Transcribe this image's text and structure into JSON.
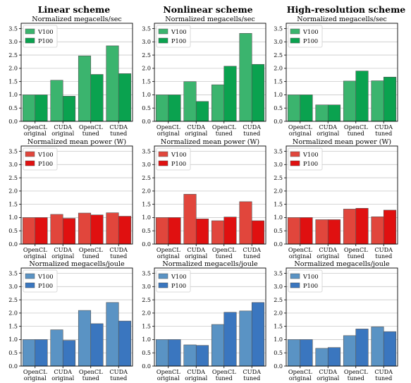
{
  "colors": {
    "speed_v100": "#3bb46e",
    "speed_p100": "#0aa24f",
    "power_v100": "#e1463c",
    "power_p100": "#e01010",
    "energy_v100": "#5a93c4",
    "energy_p100": "#3a76bf",
    "grid": "#c8c8c8",
    "edge": "#555555"
  },
  "columns": [
    "Linear scheme",
    "Nonlinear scheme",
    "High-resolution scheme"
  ],
  "legend_labels": [
    "V100",
    "P100"
  ],
  "category_labels": [
    [
      "OpenCL",
      "original"
    ],
    [
      "CUDA",
      "original"
    ],
    [
      "OpenCL",
      "tuned"
    ],
    [
      "CUDA",
      "tuned"
    ]
  ],
  "chart_data": [
    {
      "type": "bar",
      "row": 0,
      "col": 0,
      "title": "Normalized megacells/sec",
      "categories": [
        "OpenCL original",
        "CUDA original",
        "OpenCL tuned",
        "CUDA tuned"
      ],
      "ylim": [
        0,
        3.7
      ],
      "yticks": [
        0,
        0.5,
        1.0,
        1.5,
        2.0,
        2.5,
        3.0,
        3.5
      ],
      "grid": true,
      "legend": "top-left",
      "series": [
        {
          "name": "V100",
          "values": [
            1.0,
            1.55,
            2.47,
            2.85
          ]
        },
        {
          "name": "P100",
          "values": [
            1.0,
            0.95,
            1.77,
            1.8
          ]
        }
      ]
    },
    {
      "type": "bar",
      "row": 0,
      "col": 1,
      "title": "Normalized megacells/sec",
      "categories": [
        "OpenCL original",
        "CUDA original",
        "OpenCL tuned",
        "CUDA tuned"
      ],
      "ylim": [
        0,
        3.7
      ],
      "yticks": [
        0,
        0.5,
        1.0,
        1.5,
        2.0,
        2.5,
        3.0,
        3.5
      ],
      "grid": true,
      "legend": "top-left",
      "series": [
        {
          "name": "V100",
          "values": [
            1.0,
            1.5,
            1.38,
            3.32
          ]
        },
        {
          "name": "P100",
          "values": [
            1.0,
            0.75,
            2.08,
            2.15
          ]
        }
      ]
    },
    {
      "type": "bar",
      "row": 0,
      "col": 2,
      "title": "Normalized megacells/sec",
      "categories": [
        "OpenCL original",
        "CUDA original",
        "OpenCL tuned",
        "CUDA tuned"
      ],
      "ylim": [
        0,
        3.7
      ],
      "yticks": [
        0,
        0.5,
        1.0,
        1.5,
        2.0,
        2.5,
        3.0,
        3.5
      ],
      "grid": true,
      "legend": "top-left",
      "series": [
        {
          "name": "V100",
          "values": [
            1.0,
            0.62,
            1.52,
            1.53
          ]
        },
        {
          "name": "P100",
          "values": [
            1.0,
            0.62,
            1.9,
            1.67
          ]
        }
      ]
    },
    {
      "type": "bar",
      "row": 1,
      "col": 0,
      "title": "Normalized mean power (W)",
      "categories": [
        "OpenCL original",
        "CUDA original",
        "OpenCL tuned",
        "CUDA tuned"
      ],
      "ylim": [
        0,
        3.7
      ],
      "yticks": [
        0,
        0.5,
        1.0,
        1.5,
        2.0,
        2.5,
        3.0,
        3.5
      ],
      "grid": true,
      "legend": "top-left",
      "series": [
        {
          "name": "V100",
          "values": [
            1.0,
            1.12,
            1.17,
            1.18
          ]
        },
        {
          "name": "P100",
          "values": [
            1.0,
            0.97,
            1.1,
            1.05
          ]
        }
      ]
    },
    {
      "type": "bar",
      "row": 1,
      "col": 1,
      "title": "Normalized mean power (W)",
      "categories": [
        "OpenCL original",
        "CUDA original",
        "OpenCL tuned",
        "CUDA tuned"
      ],
      "ylim": [
        0,
        3.7
      ],
      "yticks": [
        0,
        0.5,
        1.0,
        1.5,
        2.0,
        2.5,
        3.0,
        3.5
      ],
      "grid": true,
      "legend": "top-left",
      "series": [
        {
          "name": "V100",
          "values": [
            1.0,
            1.88,
            0.88,
            1.6
          ]
        },
        {
          "name": "P100",
          "values": [
            1.0,
            0.95,
            1.02,
            0.88
          ]
        }
      ]
    },
    {
      "type": "bar",
      "row": 1,
      "col": 2,
      "title": "Normalized mean power (W)",
      "categories": [
        "OpenCL original",
        "CUDA original",
        "OpenCL tuned",
        "CUDA tuned"
      ],
      "ylim": [
        0,
        3.7
      ],
      "yticks": [
        0,
        0.5,
        1.0,
        1.5,
        2.0,
        2.5,
        3.0,
        3.5
      ],
      "grid": true,
      "legend": "top-left",
      "series": [
        {
          "name": "V100",
          "values": [
            1.0,
            0.92,
            1.32,
            1.03
          ]
        },
        {
          "name": "P100",
          "values": [
            1.0,
            0.92,
            1.35,
            1.28
          ]
        }
      ]
    },
    {
      "type": "bar",
      "row": 2,
      "col": 0,
      "title": "Normalized megacells/joule",
      "categories": [
        "OpenCL original",
        "CUDA original",
        "OpenCL tuned",
        "CUDA tuned"
      ],
      "ylim": [
        0,
        3.7
      ],
      "yticks": [
        0,
        0.5,
        1.0,
        1.5,
        2.0,
        2.5,
        3.0,
        3.5
      ],
      "grid": true,
      "legend": "top-left",
      "series": [
        {
          "name": "V100",
          "values": [
            1.0,
            1.37,
            2.1,
            2.4
          ]
        },
        {
          "name": "P100",
          "values": [
            1.0,
            0.97,
            1.6,
            1.7
          ]
        }
      ]
    },
    {
      "type": "bar",
      "row": 2,
      "col": 1,
      "title": "Normalized megacells/joule",
      "categories": [
        "OpenCL original",
        "CUDA original",
        "OpenCL tuned",
        "CUDA tuned"
      ],
      "ylim": [
        0,
        3.7
      ],
      "yticks": [
        0,
        0.5,
        1.0,
        1.5,
        2.0,
        2.5,
        3.0,
        3.5
      ],
      "grid": true,
      "legend": "top-left",
      "series": [
        {
          "name": "V100",
          "values": [
            1.0,
            0.8,
            1.57,
            2.08
          ]
        },
        {
          "name": "P100",
          "values": [
            1.0,
            0.78,
            2.03,
            2.4
          ]
        }
      ]
    },
    {
      "type": "bar",
      "row": 2,
      "col": 2,
      "title": "Normalized megacells/joule",
      "categories": [
        "OpenCL original",
        "CUDA original",
        "OpenCL tuned",
        "CUDA tuned"
      ],
      "ylim": [
        0,
        3.7
      ],
      "yticks": [
        0,
        0.5,
        1.0,
        1.5,
        2.0,
        2.5,
        3.0,
        3.5
      ],
      "grid": true,
      "legend": "top-left",
      "series": [
        {
          "name": "V100",
          "values": [
            1.0,
            0.67,
            1.15,
            1.48
          ]
        },
        {
          "name": "P100",
          "values": [
            1.0,
            0.7,
            1.4,
            1.3
          ]
        }
      ]
    }
  ]
}
